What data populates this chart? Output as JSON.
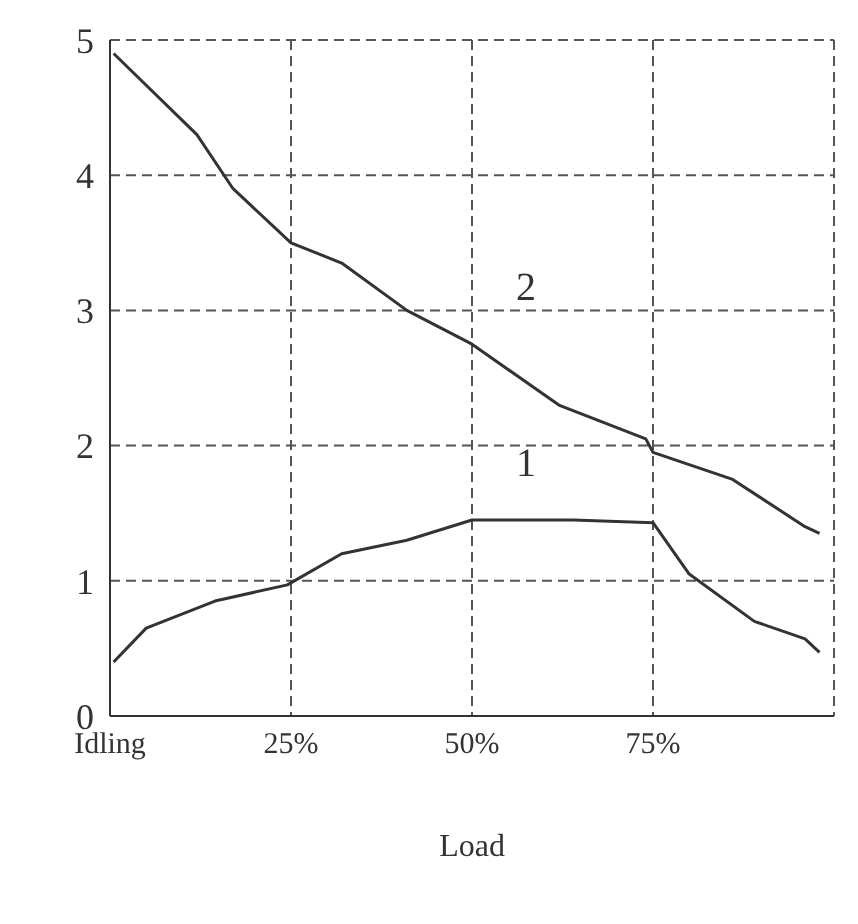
{
  "chart_data": {
    "type": "line",
    "xlabel": "Load",
    "x": [
      0.5,
      12,
      17,
      25,
      32,
      41,
      50,
      62,
      74,
      75,
      86,
      96,
      98
    ],
    "series": [
      {
        "name": "1",
        "color": "#333333",
        "x": [
          0.5,
          5,
          14.5,
          24.5,
          32,
          41,
          50,
          64,
          75,
          80,
          89,
          96,
          98
        ],
        "values": [
          0.4,
          0.65,
          0.85,
          0.97,
          1.2,
          1.3,
          1.45,
          1.45,
          1.43,
          1.05,
          0.7,
          0.57,
          0.47
        ]
      },
      {
        "name": "2",
        "color": "#333333",
        "values": [
          4.9,
          4.3,
          3.9,
          3.5,
          3.35,
          3.0,
          2.75,
          2.3,
          2.05,
          1.95,
          1.75,
          1.4,
          1.35
        ]
      }
    ],
    "xlim": [
      0,
      100
    ],
    "xticks": [
      {
        "value": 0,
        "label": "Idling"
      },
      {
        "value": 25,
        "label": "25%"
      },
      {
        "value": 50,
        "label": "50%"
      },
      {
        "value": 75,
        "label": "75%"
      },
      {
        "value": 100,
        "label": null
      }
    ],
    "ylim": [
      0,
      5
    ],
    "yticks": [
      0,
      1,
      2,
      3,
      4,
      5
    ],
    "grid": true,
    "marker": "none",
    "line_style": "solid"
  }
}
